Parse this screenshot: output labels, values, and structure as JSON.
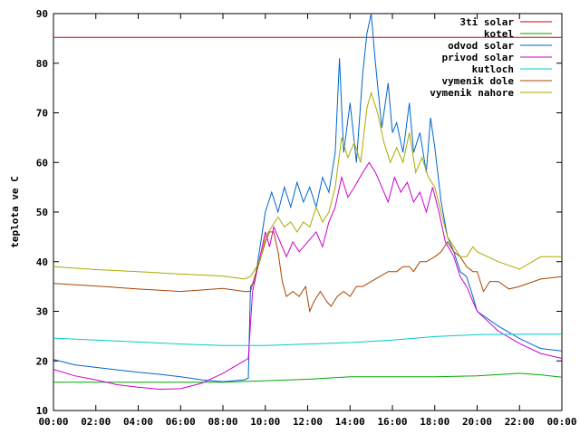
{
  "chart_data": {
    "type": "line",
    "ylabel": "teplota ve C",
    "xlabel": "",
    "ylim": [
      10,
      90
    ],
    "xlim": [
      0,
      24
    ],
    "x_ticks": [
      "00:00",
      "02:00",
      "04:00",
      "06:00",
      "08:00",
      "10:00",
      "12:00",
      "14:00",
      "16:00",
      "18:00",
      "20:00",
      "22:00",
      "00:00"
    ],
    "y_ticks": [
      "10",
      "20",
      "30",
      "40",
      "50",
      "60",
      "70",
      "80",
      "90"
    ],
    "grid": false,
    "legend_position": "top-right",
    "series": [
      {
        "name": "3ti solar",
        "color": "#cc0000",
        "points": [
          [
            0,
            85.2
          ],
          [
            24,
            85.2
          ]
        ]
      },
      {
        "name": "kotel",
        "color": "#00aa00",
        "points": [
          [
            0,
            15.7
          ],
          [
            4,
            15.7
          ],
          [
            8,
            15.7
          ],
          [
            10,
            16.0
          ],
          [
            12,
            16.3
          ],
          [
            14,
            16.8
          ],
          [
            16,
            16.8
          ],
          [
            18,
            16.8
          ],
          [
            20,
            17.0
          ],
          [
            22,
            17.5
          ],
          [
            23,
            17.2
          ],
          [
            24,
            16.7
          ]
        ]
      },
      {
        "name": "odvod solar",
        "color": "#0066cc",
        "points": [
          [
            0,
            20.3
          ],
          [
            1,
            19.2
          ],
          [
            2,
            18.7
          ],
          [
            3,
            18.2
          ],
          [
            4,
            17.7
          ],
          [
            5,
            17.3
          ],
          [
            6,
            16.8
          ],
          [
            7,
            16.2
          ],
          [
            8,
            15.8
          ],
          [
            9,
            16.2
          ],
          [
            9.2,
            16.5
          ],
          [
            9.3,
            35
          ],
          [
            9.5,
            36
          ],
          [
            10,
            50
          ],
          [
            10.3,
            54
          ],
          [
            10.6,
            50
          ],
          [
            10.9,
            55
          ],
          [
            11.2,
            51
          ],
          [
            11.5,
            56
          ],
          [
            11.8,
            52
          ],
          [
            12.1,
            55
          ],
          [
            12.4,
            51
          ],
          [
            12.7,
            57
          ],
          [
            13,
            54
          ],
          [
            13.3,
            62
          ],
          [
            13.5,
            81
          ],
          [
            13.7,
            62
          ],
          [
            14,
            72
          ],
          [
            14.3,
            60
          ],
          [
            14.6,
            78
          ],
          [
            14.8,
            86
          ],
          [
            15,
            90
          ],
          [
            15.2,
            80
          ],
          [
            15.5,
            67
          ],
          [
            15.8,
            76
          ],
          [
            16,
            66
          ],
          [
            16.2,
            68
          ],
          [
            16.5,
            62
          ],
          [
            16.8,
            72
          ],
          [
            17,
            62
          ],
          [
            17.3,
            66
          ],
          [
            17.6,
            58
          ],
          [
            17.8,
            69
          ],
          [
            18,
            63
          ],
          [
            18.3,
            52
          ],
          [
            18.6,
            45
          ],
          [
            18.9,
            42
          ],
          [
            19.2,
            38
          ],
          [
            19.5,
            37
          ],
          [
            19.8,
            33
          ],
          [
            20,
            30
          ],
          [
            21,
            27
          ],
          [
            22,
            24.5
          ],
          [
            23,
            22.5
          ],
          [
            24,
            22
          ]
        ]
      },
      {
        "name": "privod solar",
        "color": "#cc00cc",
        "points": [
          [
            0,
            18.3
          ],
          [
            1,
            17
          ],
          [
            2,
            16.2
          ],
          [
            3,
            15.2
          ],
          [
            4,
            14.7
          ],
          [
            5,
            14.3
          ],
          [
            6,
            14.4
          ],
          [
            7,
            15.5
          ],
          [
            8,
            17.5
          ],
          [
            9,
            20
          ],
          [
            9.2,
            20.5
          ],
          [
            9.4,
            34
          ],
          [
            9.6,
            38
          ],
          [
            9.8,
            42
          ],
          [
            10,
            46
          ],
          [
            10.2,
            43
          ],
          [
            10.4,
            47
          ],
          [
            10.7,
            44
          ],
          [
            11,
            41
          ],
          [
            11.3,
            44
          ],
          [
            11.6,
            42
          ],
          [
            12,
            44
          ],
          [
            12.4,
            46
          ],
          [
            12.7,
            43
          ],
          [
            13,
            48
          ],
          [
            13.3,
            51
          ],
          [
            13.6,
            57
          ],
          [
            13.9,
            53
          ],
          [
            14.2,
            55
          ],
          [
            14.6,
            58
          ],
          [
            14.9,
            60
          ],
          [
            15.2,
            58
          ],
          [
            15.5,
            55
          ],
          [
            15.8,
            52
          ],
          [
            16.1,
            57
          ],
          [
            16.4,
            54
          ],
          [
            16.7,
            56
          ],
          [
            17,
            52
          ],
          [
            17.3,
            54
          ],
          [
            17.6,
            50
          ],
          [
            17.9,
            55
          ],
          [
            18.2,
            50
          ],
          [
            18.5,
            44
          ],
          [
            18.9,
            41
          ],
          [
            19.2,
            37
          ],
          [
            19.5,
            35
          ],
          [
            19.8,
            32
          ],
          [
            20,
            30
          ],
          [
            21,
            26
          ],
          [
            22,
            23.5
          ],
          [
            23,
            21.5
          ],
          [
            24,
            20.5
          ]
        ]
      },
      {
        "name": "kutloch",
        "color": "#00cccc",
        "points": [
          [
            0,
            24.6
          ],
          [
            2,
            24.2
          ],
          [
            4,
            23.8
          ],
          [
            6,
            23.4
          ],
          [
            8,
            23.1
          ],
          [
            10,
            23.1
          ],
          [
            12,
            23.4
          ],
          [
            14,
            23.7
          ],
          [
            16,
            24.2
          ],
          [
            18,
            24.9
          ],
          [
            20,
            25.3
          ],
          [
            22,
            25.4
          ],
          [
            24,
            25.4
          ]
        ]
      },
      {
        "name": "vymenik dole",
        "color": "#aa4400",
        "points": [
          [
            0,
            35.6
          ],
          [
            2,
            35.1
          ],
          [
            4,
            34.5
          ],
          [
            6,
            34.0
          ],
          [
            8,
            34.6
          ],
          [
            9,
            34.0
          ],
          [
            9.3,
            34.0
          ],
          [
            9.5,
            37
          ],
          [
            9.8,
            41
          ],
          [
            10,
            44
          ],
          [
            10.2,
            46
          ],
          [
            10.4,
            46
          ],
          [
            10.6,
            42
          ],
          [
            10.8,
            36
          ],
          [
            11,
            33
          ],
          [
            11.3,
            34
          ],
          [
            11.6,
            33
          ],
          [
            11.9,
            35
          ],
          [
            12.1,
            30
          ],
          [
            12.3,
            32
          ],
          [
            12.6,
            34
          ],
          [
            12.9,
            32
          ],
          [
            13.1,
            31
          ],
          [
            13.4,
            33
          ],
          [
            13.7,
            34
          ],
          [
            14,
            33
          ],
          [
            14.3,
            35
          ],
          [
            14.6,
            35
          ],
          [
            15,
            36
          ],
          [
            15.4,
            37
          ],
          [
            15.8,
            38
          ],
          [
            16.2,
            38
          ],
          [
            16.5,
            39
          ],
          [
            16.8,
            39
          ],
          [
            17,
            38
          ],
          [
            17.3,
            40
          ],
          [
            17.6,
            40
          ],
          [
            18,
            41
          ],
          [
            18.3,
            42
          ],
          [
            18.6,
            44
          ],
          [
            18.9,
            42
          ],
          [
            19.2,
            41
          ],
          [
            19.5,
            39
          ],
          [
            19.8,
            38
          ],
          [
            20,
            38
          ],
          [
            20.3,
            34
          ],
          [
            20.6,
            36
          ],
          [
            21,
            36
          ],
          [
            21.5,
            34.5
          ],
          [
            22,
            35
          ],
          [
            23,
            36.5
          ],
          [
            24,
            37
          ]
        ]
      },
      {
        "name": "vymenik nahore",
        "color": "#aaaa00",
        "points": [
          [
            0,
            39
          ],
          [
            2,
            38.4
          ],
          [
            4,
            38
          ],
          [
            6,
            37.5
          ],
          [
            8,
            37.1
          ],
          [
            9,
            36.5
          ],
          [
            9.3,
            37
          ],
          [
            9.6,
            39
          ],
          [
            9.8,
            41
          ],
          [
            10,
            45
          ],
          [
            10.3,
            47
          ],
          [
            10.6,
            49
          ],
          [
            10.9,
            47
          ],
          [
            11.2,
            48
          ],
          [
            11.5,
            46
          ],
          [
            11.8,
            48
          ],
          [
            12.1,
            47
          ],
          [
            12.4,
            51
          ],
          [
            12.7,
            48
          ],
          [
            13,
            50
          ],
          [
            13.3,
            55
          ],
          [
            13.6,
            65
          ],
          [
            13.9,
            61
          ],
          [
            14.2,
            64
          ],
          [
            14.5,
            60
          ],
          [
            14.8,
            71
          ],
          [
            15,
            74
          ],
          [
            15.3,
            70
          ],
          [
            15.6,
            64
          ],
          [
            15.9,
            60
          ],
          [
            16.2,
            63
          ],
          [
            16.5,
            60
          ],
          [
            16.8,
            66
          ],
          [
            17.1,
            58
          ],
          [
            17.4,
            61
          ],
          [
            17.7,
            57
          ],
          [
            18,
            55
          ],
          [
            18.3,
            50
          ],
          [
            18.6,
            45
          ],
          [
            18.9,
            43
          ],
          [
            19.2,
            41
          ],
          [
            19.5,
            41
          ],
          [
            19.8,
            43
          ],
          [
            20,
            42
          ],
          [
            21,
            40
          ],
          [
            22,
            38.5
          ],
          [
            23,
            41
          ],
          [
            24,
            41
          ]
        ]
      }
    ]
  }
}
